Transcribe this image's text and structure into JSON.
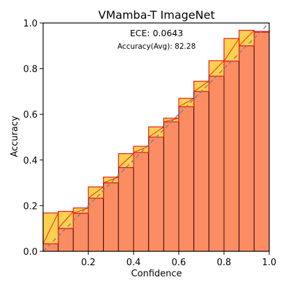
{
  "chart_data": {
    "type": "bar",
    "title": "VMamba-T  ImageNet",
    "xlabel": "Confidence",
    "ylabel": "Accuracy",
    "xlim": [
      0,
      1
    ],
    "ylim": [
      0,
      1
    ],
    "xticks": [
      0.2,
      0.4,
      0.6,
      0.8,
      1.0
    ],
    "xtick_labels": [
      "0.2",
      "0.4",
      "0.6",
      "0.8",
      "1.0"
    ],
    "yticks": [
      0.0,
      0.2,
      0.4,
      0.6,
      0.8,
      1.0
    ],
    "ytick_labels": [
      "0.0",
      "0.2",
      "0.4",
      "0.6",
      "0.8",
      "1.0"
    ],
    "grid": false,
    "annotations": {
      "ece": "ECE: 0.0643",
      "accuracy": "Accuracy(Avg): 82.28"
    },
    "bin_width": 0.0667,
    "bins": [
      {
        "x": 0.0,
        "accuracy": 0.033,
        "confidence": 0.168
      },
      {
        "x": 0.0667,
        "accuracy": 0.1,
        "confidence": 0.175
      },
      {
        "x": 0.1333,
        "accuracy": 0.167,
        "confidence": 0.19
      },
      {
        "x": 0.2,
        "accuracy": 0.233,
        "confidence": 0.282
      },
      {
        "x": 0.2667,
        "accuracy": 0.3,
        "confidence": 0.325
      },
      {
        "x": 0.3333,
        "accuracy": 0.367,
        "confidence": 0.428
      },
      {
        "x": 0.4,
        "accuracy": 0.433,
        "confidence": 0.46
      },
      {
        "x": 0.4667,
        "accuracy": 0.5,
        "confidence": 0.545
      },
      {
        "x": 0.5333,
        "accuracy": 0.567,
        "confidence": 0.583
      },
      {
        "x": 0.6,
        "accuracy": 0.633,
        "confidence": 0.67
      },
      {
        "x": 0.6667,
        "accuracy": 0.7,
        "confidence": 0.745
      },
      {
        "x": 0.7333,
        "accuracy": 0.767,
        "confidence": 0.835
      },
      {
        "x": 0.8,
        "accuracy": 0.833,
        "confidence": 0.932
      },
      {
        "x": 0.8667,
        "accuracy": 0.9,
        "confidence": 0.968
      },
      {
        "x": 0.9333,
        "accuracy": 0.96,
        "confidence": 0.963
      }
    ],
    "colors": {
      "bar_fill": "#fc8d62",
      "bar_edge": "#2b0a0a",
      "gap_fill": "#fdc830",
      "gap_edge": "#e31a1c",
      "diagonal": "#808080"
    }
  }
}
